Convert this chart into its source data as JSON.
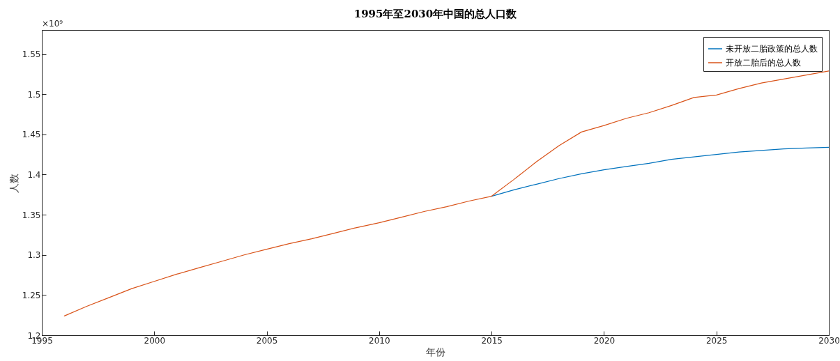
{
  "chart_data": {
    "type": "line",
    "title": "1995年至2030年中国的总人口数",
    "xlabel": "年份",
    "ylabel": "人数",
    "annotations": [
      "×10⁹"
    ],
    "xlim": [
      1995,
      2030
    ],
    "xticks": [
      1995,
      2000,
      2005,
      2010,
      2015,
      2020,
      2025,
      2030
    ],
    "ylim": [
      1.2,
      1.58
    ],
    "yticks": [
      1.2,
      1.25,
      1.3,
      1.35,
      1.4,
      1.45,
      1.5,
      1.55
    ],
    "grid": false,
    "legend": "top right",
    "line_style": "solid",
    "marker": "none",
    "series": [
      {
        "name": "未开放二胎政策的总人数",
        "color": "#0072bd",
        "x": [
          2015,
          2016,
          2017,
          2018,
          2019,
          2020,
          2021,
          2022,
          2023,
          2024,
          2025,
          2026,
          2027,
          2028,
          2029,
          2030
        ],
        "values": [
          1.373,
          1.381,
          1.388,
          1.395,
          1.401,
          1.406,
          1.41,
          1.414,
          1.419,
          1.422,
          1.425,
          1.428,
          1.43,
          1.432,
          1.433,
          1.434
        ]
      },
      {
        "name": "开放二胎后的总人数",
        "color": "#d95319",
        "x": [
          1996,
          1997,
          1998,
          1999,
          2000,
          2001,
          2002,
          2003,
          2004,
          2005,
          2006,
          2007,
          2008,
          2009,
          2010,
          2011,
          2012,
          2013,
          2014,
          2015,
          2016,
          2017,
          2018,
          2019,
          2020,
          2021,
          2022,
          2023,
          2024,
          2025,
          2026,
          2027,
          2028,
          2029,
          2030
        ],
        "values": [
          1.224,
          1.236,
          1.247,
          1.258,
          1.267,
          1.276,
          1.284,
          1.292,
          1.3,
          1.307,
          1.314,
          1.32,
          1.327,
          1.334,
          1.34,
          1.347,
          1.354,
          1.36,
          1.367,
          1.373,
          1.394,
          1.416,
          1.436,
          1.453,
          1.461,
          1.47,
          1.477,
          1.486,
          1.496,
          1.499,
          1.507,
          1.514,
          1.519,
          1.524,
          1.529
        ]
      }
    ]
  }
}
